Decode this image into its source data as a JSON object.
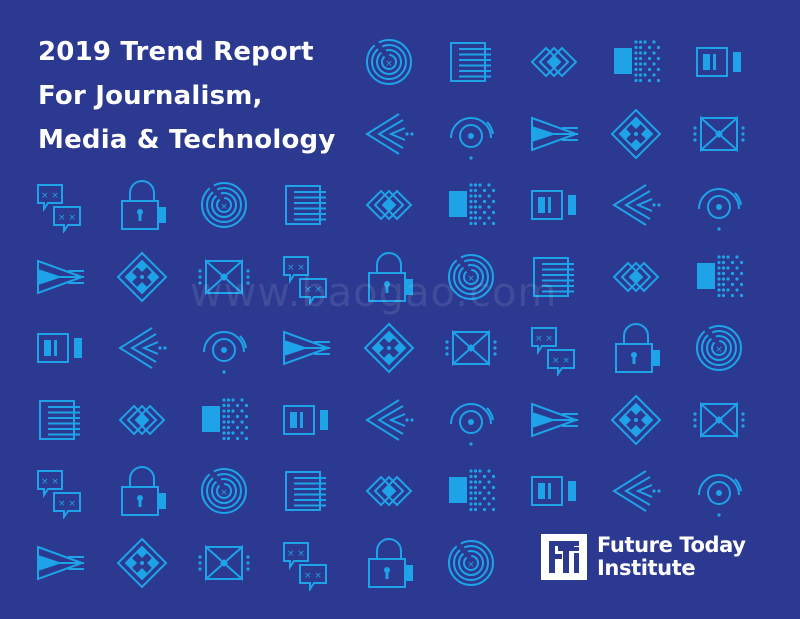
{
  "title": {
    "line1": "2019 Trend Report",
    "line2": "For Journalism,",
    "line3": "Media & Technology"
  },
  "watermark": "www.baogao.com",
  "logo": {
    "line1": "Future Today",
    "line2": "Institute"
  },
  "colors": {
    "background": "#2b3990",
    "icon": "#1fa3e8",
    "text": "#ffffff"
  },
  "icon_sequence": [
    "chat-icon",
    "padlock-icon",
    "maze-icon",
    "list-icon",
    "diamonds-icon",
    "dot-grid-icon",
    "battery-icon",
    "arrows-left-icon",
    "radar-icon",
    "plane-icon",
    "diamond-cluster-icon",
    "bowtie-icon"
  ],
  "rows": [
    [
      "maze-icon",
      "list-icon",
      "diamonds-icon",
      "dot-grid-icon",
      "battery-icon"
    ],
    [
      "arrows-left-icon",
      "radar-icon",
      "plane-icon",
      "diamond-cluster-icon",
      "bowtie-icon"
    ],
    [
      "chat-icon",
      "padlock-icon",
      "maze-icon",
      "list-icon",
      "diamonds-icon",
      "dot-grid-icon",
      "battery-icon",
      "arrows-left-icon",
      "radar-icon"
    ],
    [
      "plane-icon",
      "diamond-cluster-icon",
      "bowtie-icon",
      "chat-icon",
      "padlock-icon",
      "maze-icon",
      "list-icon",
      "diamonds-icon",
      "dot-grid-icon"
    ],
    [
      "battery-icon",
      "arrows-left-icon",
      "radar-icon",
      "plane-icon",
      "diamond-cluster-icon",
      "bowtie-icon",
      "chat-icon",
      "padlock-icon",
      "maze-icon"
    ],
    [
      "list-icon",
      "diamonds-icon",
      "dot-grid-icon",
      "battery-icon",
      "arrows-left-icon",
      "radar-icon",
      "plane-icon",
      "diamond-cluster-icon",
      "bowtie-icon"
    ],
    [
      "chat-icon",
      "padlock-icon",
      "maze-icon",
      "list-icon",
      "diamonds-icon",
      "dot-grid-icon",
      "battery-icon",
      "arrows-left-icon",
      "radar-icon"
    ],
    [
      "plane-icon",
      "diamond-cluster-icon",
      "bowtie-icon",
      "chat-icon",
      "padlock-icon",
      "maze-icon"
    ]
  ]
}
